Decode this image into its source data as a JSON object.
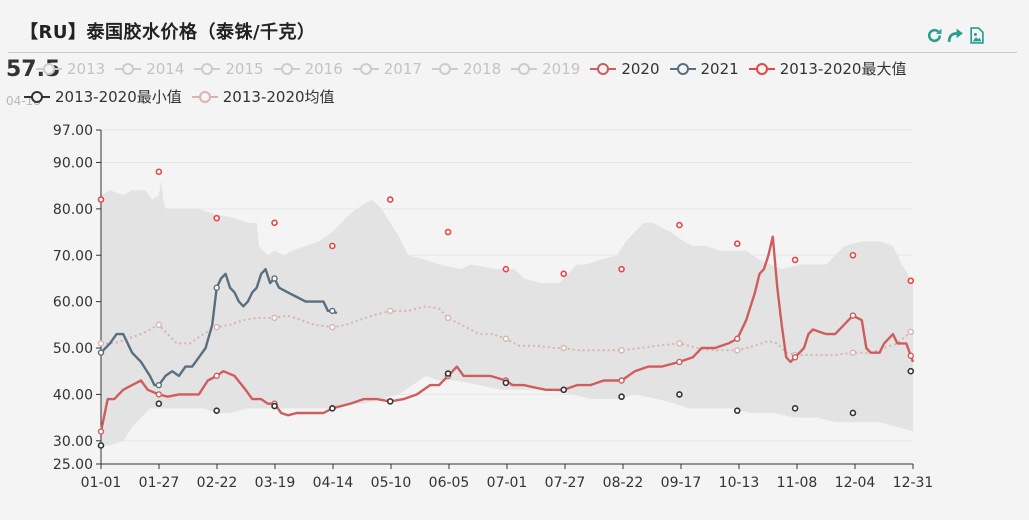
{
  "header": {
    "title": "【RU】泰国胶水价格（泰铢/千克）",
    "current_value": "57.5",
    "current_date": "04-18"
  },
  "toolbar": {
    "icons": [
      "refresh-icon",
      "share-icon",
      "save-image-icon"
    ],
    "color": "#2a9d8f"
  },
  "legend": [
    {
      "label": "2013",
      "active": false
    },
    {
      "label": "2014",
      "active": false
    },
    {
      "label": "2015",
      "active": false
    },
    {
      "label": "2016",
      "active": false
    },
    {
      "label": "2017",
      "active": false
    },
    {
      "label": "2018",
      "active": false
    },
    {
      "label": "2019",
      "active": false
    },
    {
      "label": "2020",
      "active": true
    },
    {
      "label": "2021",
      "active": true
    },
    {
      "label": "2013-2020最大值",
      "active": true
    },
    {
      "label": "2013-2020最小值",
      "active": true
    },
    {
      "label": "2013-2020均值",
      "active": true
    }
  ],
  "colors": {
    "s2020": "#cf5d5d",
    "s2021": "#596e7f",
    "max": "#e84545",
    "min": "#333333",
    "mean": "#d9b3ae",
    "band": "#e3e3e3",
    "inactive": "#cccccc",
    "axis": "#333333",
    "grid": "#e6e6e6"
  },
  "chart_data": {
    "type": "line",
    "x_ticks": [
      "01-01",
      "01-27",
      "02-22",
      "03-19",
      "04-14",
      "05-10",
      "06-05",
      "07-01",
      "07-27",
      "08-22",
      "09-17",
      "10-13",
      "11-08",
      "12-04",
      "12-31"
    ],
    "y_ticks": [
      "25.00",
      "30.00",
      "40.00",
      "50.00",
      "60.00",
      "70.00",
      "80.00",
      "90.00",
      "97.00"
    ],
    "ylim": [
      25,
      97
    ],
    "xlim_day": [
      0,
      365
    ],
    "band_upper": [
      [
        0,
        83
      ],
      [
        4,
        84
      ],
      [
        10,
        83
      ],
      [
        14,
        84
      ],
      [
        20,
        84
      ],
      [
        23,
        82
      ],
      [
        26,
        83
      ],
      [
        27,
        86
      ],
      [
        28,
        82
      ],
      [
        29,
        80
      ],
      [
        34,
        80
      ],
      [
        44,
        80
      ],
      [
        50,
        79
      ],
      [
        60,
        78
      ],
      [
        66,
        77
      ],
      [
        70,
        77
      ],
      [
        71,
        72
      ],
      [
        73,
        71
      ],
      [
        75,
        70
      ],
      [
        78,
        71
      ],
      [
        82,
        70
      ],
      [
        86,
        71
      ],
      [
        92,
        72
      ],
      [
        98,
        73
      ],
      [
        104,
        75
      ],
      [
        108,
        77
      ],
      [
        112,
        79
      ],
      [
        118,
        81
      ],
      [
        122,
        82
      ],
      [
        126,
        80
      ],
      [
        130,
        77
      ],
      [
        134,
        74
      ],
      [
        138,
        70
      ],
      [
        146,
        69
      ],
      [
        152,
        68
      ],
      [
        162,
        67
      ],
      [
        166,
        68
      ],
      [
        178,
        67
      ],
      [
        186,
        67
      ],
      [
        190,
        65
      ],
      [
        198,
        64
      ],
      [
        206,
        64
      ],
      [
        210,
        66
      ],
      [
        214,
        68
      ],
      [
        218,
        68
      ],
      [
        224,
        69
      ],
      [
        232,
        70
      ],
      [
        236,
        73
      ],
      [
        240,
        75
      ],
      [
        244,
        77
      ],
      [
        248,
        77
      ],
      [
        256,
        75
      ],
      [
        262,
        73
      ],
      [
        266,
        72
      ],
      [
        272,
        72
      ],
      [
        278,
        71
      ],
      [
        282,
        71
      ],
      [
        290,
        71
      ],
      [
        296,
        69
      ],
      [
        306,
        67
      ],
      [
        314,
        68
      ],
      [
        326,
        68
      ],
      [
        334,
        72
      ],
      [
        342,
        73
      ],
      [
        350,
        73
      ],
      [
        356,
        72
      ],
      [
        360,
        68
      ],
      [
        365,
        64
      ]
    ],
    "band_lower": [
      [
        0,
        29
      ],
      [
        4,
        29
      ],
      [
        10,
        30
      ],
      [
        14,
        33
      ],
      [
        22,
        37
      ],
      [
        28,
        37
      ],
      [
        34,
        37
      ],
      [
        46,
        37
      ],
      [
        52,
        36
      ],
      [
        58,
        36
      ],
      [
        66,
        37
      ],
      [
        72,
        37
      ],
      [
        80,
        37
      ],
      [
        90,
        37
      ],
      [
        96,
        37
      ],
      [
        104,
        37
      ],
      [
        110,
        38
      ],
      [
        118,
        38
      ],
      [
        126,
        39
      ],
      [
        134,
        40
      ],
      [
        140,
        42
      ],
      [
        146,
        44
      ],
      [
        152,
        43
      ],
      [
        160,
        43
      ],
      [
        170,
        42
      ],
      [
        180,
        41
      ],
      [
        190,
        41
      ],
      [
        200,
        41
      ],
      [
        212,
        40
      ],
      [
        220,
        39
      ],
      [
        232,
        39
      ],
      [
        240,
        40
      ],
      [
        250,
        39
      ],
      [
        258,
        38
      ],
      [
        264,
        37
      ],
      [
        268,
        37
      ],
      [
        276,
        37
      ],
      [
        284,
        37
      ],
      [
        292,
        36
      ],
      [
        302,
        36
      ],
      [
        312,
        35
      ],
      [
        322,
        35
      ],
      [
        330,
        34
      ],
      [
        340,
        34
      ],
      [
        350,
        34
      ],
      [
        358,
        33
      ],
      [
        365,
        32
      ]
    ],
    "series": [
      {
        "name": "2020",
        "key": "s2020",
        "marker_days": [
          0,
          26,
          52,
          78,
          104,
          130,
          156,
          182,
          208,
          234,
          260,
          286,
          312,
          338,
          364
        ],
        "points": [
          [
            0,
            32
          ],
          [
            3,
            39
          ],
          [
            6,
            39
          ],
          [
            10,
            41
          ],
          [
            14,
            42
          ],
          [
            18,
            43
          ],
          [
            21,
            41
          ],
          [
            26,
            40
          ],
          [
            30,
            39.5
          ],
          [
            35,
            40
          ],
          [
            40,
            40
          ],
          [
            44,
            40
          ],
          [
            48,
            43
          ],
          [
            52,
            44
          ],
          [
            55,
            45
          ],
          [
            60,
            44
          ],
          [
            65,
            41
          ],
          [
            68,
            39
          ],
          [
            72,
            39
          ],
          [
            75,
            38
          ],
          [
            78,
            38
          ],
          [
            81,
            36
          ],
          [
            84,
            35.5
          ],
          [
            88,
            36
          ],
          [
            95,
            36
          ],
          [
            100,
            36
          ],
          [
            104,
            37
          ],
          [
            108,
            37.5
          ],
          [
            112,
            38
          ],
          [
            118,
            39
          ],
          [
            124,
            39
          ],
          [
            130,
            38.5
          ],
          [
            136,
            39
          ],
          [
            142,
            40
          ],
          [
            148,
            42
          ],
          [
            152,
            42
          ],
          [
            156,
            44
          ],
          [
            160,
            46
          ],
          [
            163,
            44
          ],
          [
            168,
            44
          ],
          [
            175,
            44
          ],
          [
            182,
            43
          ],
          [
            185,
            42
          ],
          [
            190,
            42
          ],
          [
            195,
            41.5
          ],
          [
            200,
            41
          ],
          [
            208,
            41
          ],
          [
            214,
            42
          ],
          [
            220,
            42
          ],
          [
            226,
            43
          ],
          [
            234,
            43
          ],
          [
            240,
            45
          ],
          [
            246,
            46
          ],
          [
            252,
            46
          ],
          [
            260,
            47
          ],
          [
            266,
            48
          ],
          [
            270,
            50
          ],
          [
            276,
            50
          ],
          [
            282,
            51
          ],
          [
            286,
            52
          ],
          [
            290,
            56
          ],
          [
            294,
            62
          ],
          [
            296,
            66
          ],
          [
            298,
            67
          ],
          [
            300,
            70
          ],
          [
            302,
            74
          ],
          [
            304,
            63
          ],
          [
            306,
            55
          ],
          [
            308,
            48
          ],
          [
            310,
            47
          ],
          [
            312,
            48
          ],
          [
            316,
            50
          ],
          [
            318,
            53
          ],
          [
            320,
            54
          ],
          [
            326,
            53
          ],
          [
            330,
            53
          ],
          [
            334,
            55
          ],
          [
            338,
            57
          ],
          [
            342,
            56
          ],
          [
            344,
            50
          ],
          [
            346,
            49
          ],
          [
            350,
            49
          ],
          [
            352,
            51
          ],
          [
            356,
            53
          ],
          [
            358,
            51
          ],
          [
            362,
            51
          ],
          [
            365,
            47
          ]
        ]
      },
      {
        "name": "2021",
        "key": "s2021",
        "marker_days": [
          0,
          26,
          52,
          78,
          104
        ],
        "points": [
          [
            0,
            49
          ],
          [
            4,
            51
          ],
          [
            7,
            53
          ],
          [
            10,
            53
          ],
          [
            14,
            49
          ],
          [
            18,
            47
          ],
          [
            22,
            44
          ],
          [
            24,
            42
          ],
          [
            26,
            42
          ],
          [
            29,
            44
          ],
          [
            32,
            45
          ],
          [
            35,
            44
          ],
          [
            38,
            46
          ],
          [
            41,
            46
          ],
          [
            44,
            48
          ],
          [
            47,
            50
          ],
          [
            50,
            55
          ],
          [
            52,
            63
          ],
          [
            54,
            65
          ],
          [
            56,
            66
          ],
          [
            58,
            63
          ],
          [
            60,
            62
          ],
          [
            62,
            60
          ],
          [
            64,
            59
          ],
          [
            66,
            60
          ],
          [
            68,
            62
          ],
          [
            70,
            63
          ],
          [
            72,
            66
          ],
          [
            74,
            67
          ],
          [
            76,
            64
          ],
          [
            78,
            65
          ],
          [
            80,
            63
          ],
          [
            84,
            62
          ],
          [
            88,
            61
          ],
          [
            92,
            60
          ],
          [
            96,
            60
          ],
          [
            100,
            60
          ],
          [
            102,
            58
          ],
          [
            104,
            58
          ],
          [
            106,
            57.5
          ]
        ]
      },
      {
        "name": "2013-2020最大值",
        "key": "max",
        "line": false,
        "points": [
          [
            0,
            82
          ],
          [
            26,
            88
          ],
          [
            52,
            78
          ],
          [
            78,
            77
          ],
          [
            104,
            72
          ],
          [
            130,
            82
          ],
          [
            156,
            75
          ],
          [
            182,
            67
          ],
          [
            208,
            66
          ],
          [
            234,
            67
          ],
          [
            260,
            76.5
          ],
          [
            286,
            72.5
          ],
          [
            312,
            69
          ],
          [
            338,
            70
          ],
          [
            364,
            64.5
          ]
        ]
      },
      {
        "name": "2013-2020最小值",
        "key": "min",
        "line": false,
        "points": [
          [
            0,
            29
          ],
          [
            26,
            38
          ],
          [
            52,
            36.5
          ],
          [
            78,
            37.5
          ],
          [
            104,
            37
          ],
          [
            130,
            38.5
          ],
          [
            156,
            44.5
          ],
          [
            182,
            42.5
          ],
          [
            208,
            41
          ],
          [
            234,
            39.5
          ],
          [
            260,
            40
          ],
          [
            286,
            36.5
          ],
          [
            312,
            37
          ],
          [
            338,
            36
          ],
          [
            364,
            45
          ]
        ]
      },
      {
        "name": "2013-2020均值",
        "key": "mean",
        "dotted": true,
        "marker_days": [
          0,
          26,
          52,
          78,
          104,
          130,
          156,
          182,
          208,
          234,
          260,
          286,
          312,
          338,
          364
        ],
        "points": [
          [
            0,
            51
          ],
          [
            6,
            51
          ],
          [
            12,
            52
          ],
          [
            18,
            53
          ],
          [
            22,
            54
          ],
          [
            26,
            55
          ],
          [
            30,
            53
          ],
          [
            34,
            51
          ],
          [
            40,
            51
          ],
          [
            46,
            53
          ],
          [
            52,
            54.5
          ],
          [
            58,
            55
          ],
          [
            64,
            56
          ],
          [
            70,
            56.5
          ],
          [
            78,
            56.5
          ],
          [
            84,
            57
          ],
          [
            90,
            56
          ],
          [
            96,
            55
          ],
          [
            104,
            54.5
          ],
          [
            110,
            55
          ],
          [
            116,
            56
          ],
          [
            122,
            57
          ],
          [
            130,
            58
          ],
          [
            138,
            58
          ],
          [
            146,
            59
          ],
          [
            152,
            58.5
          ],
          [
            156,
            56.5
          ],
          [
            162,
            55
          ],
          [
            170,
            53
          ],
          [
            176,
            53
          ],
          [
            182,
            52
          ],
          [
            188,
            50.5
          ],
          [
            196,
            50.5
          ],
          [
            204,
            50
          ],
          [
            208,
            50
          ],
          [
            214,
            49.5
          ],
          [
            222,
            49.5
          ],
          [
            234,
            49.5
          ],
          [
            242,
            50
          ],
          [
            250,
            50.5
          ],
          [
            260,
            51
          ],
          [
            268,
            50
          ],
          [
            276,
            49.5
          ],
          [
            286,
            49.5
          ],
          [
            294,
            50.5
          ],
          [
            300,
            51.5
          ],
          [
            304,
            51
          ],
          [
            308,
            49
          ],
          [
            312,
            48.5
          ],
          [
            320,
            48.5
          ],
          [
            330,
            48.5
          ],
          [
            338,
            49
          ],
          [
            346,
            49
          ],
          [
            352,
            50
          ],
          [
            358,
            51
          ],
          [
            364,
            53.5
          ]
        ]
      }
    ]
  }
}
